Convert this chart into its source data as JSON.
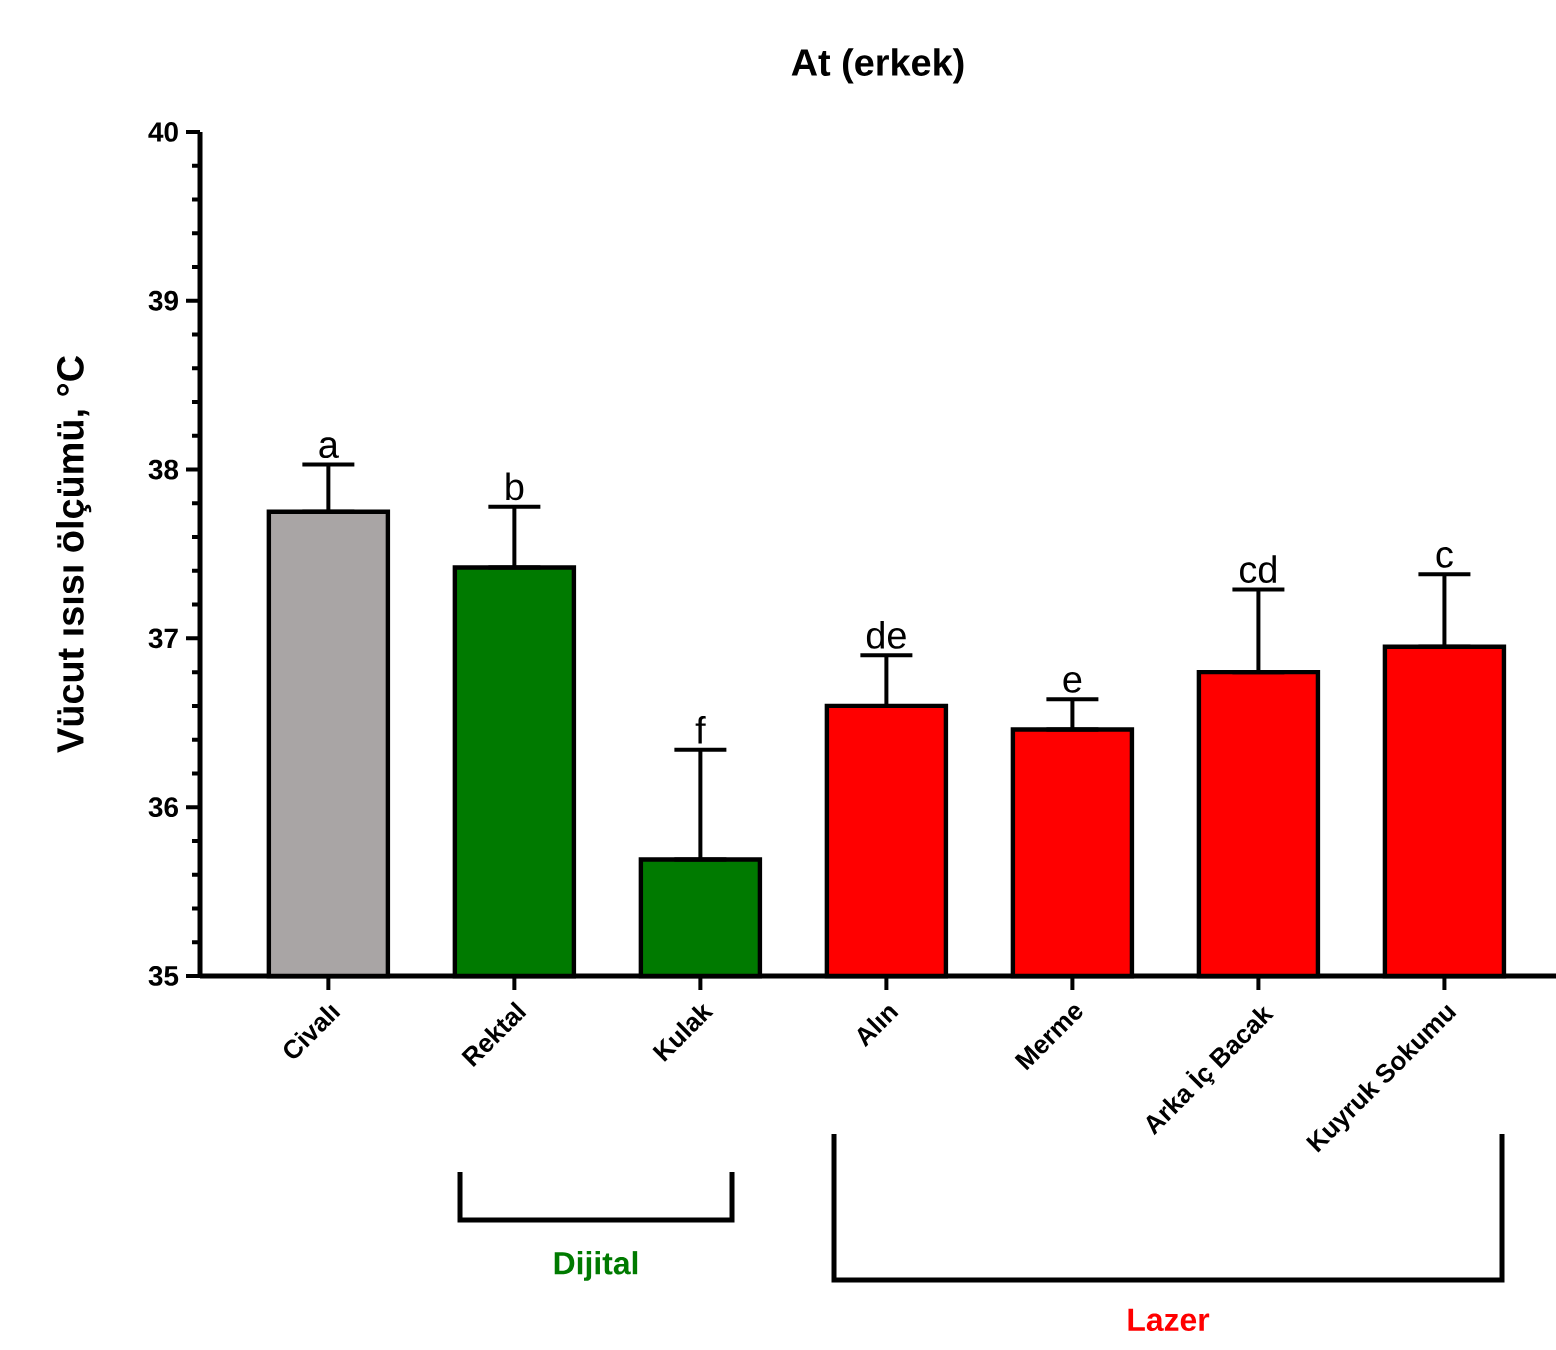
{
  "chart_data": {
    "type": "bar",
    "title": "At (erkek)",
    "ylabel": "Vücut ısısı ölçümü, °C",
    "categories": [
      "Civalı",
      "Rektal",
      "Kulak",
      "Alın",
      "Merme",
      "Arka İç Bacak",
      "Kuyruk Sokumu"
    ],
    "values": [
      37.75,
      37.42,
      35.69,
      36.6,
      36.46,
      36.8,
      36.95
    ],
    "colors": [
      "#a9a5a5",
      "#007a00",
      "#007a00",
      "#ff0000",
      "#ff0000",
      "#ff0000",
      "#ff0000"
    ],
    "errors": [
      [
        37.75,
        38.03
      ],
      [
        37.42,
        37.78
      ],
      [
        35.69,
        36.34
      ],
      [
        36.6,
        36.9
      ],
      [
        36.46,
        36.64
      ],
      [
        36.8,
        37.29
      ],
      [
        36.95,
        37.38
      ]
    ],
    "ylim": [
      35,
      40
    ],
    "yticks": [
      35,
      36,
      37,
      38,
      39,
      40
    ],
    "grid": false,
    "annotations": [
      {
        "text": "a",
        "x": "Civalı",
        "y": 38.03
      },
      {
        "text": "b",
        "x": "Rektal",
        "y": 37.78
      },
      {
        "text": "f",
        "x": "Kulak",
        "y": 36.34
      },
      {
        "text": "de",
        "x": "Alın",
        "y": 36.9
      },
      {
        "text": "e",
        "x": "Merme",
        "y": 36.64
      },
      {
        "text": "cd",
        "x": "Arka İç Bacak",
        "y": 37.29
      },
      {
        "text": "c",
        "x": "Kuyruk Sokumu",
        "y": 37.38
      },
      "Dijital",
      "Lazer"
    ]
  }
}
